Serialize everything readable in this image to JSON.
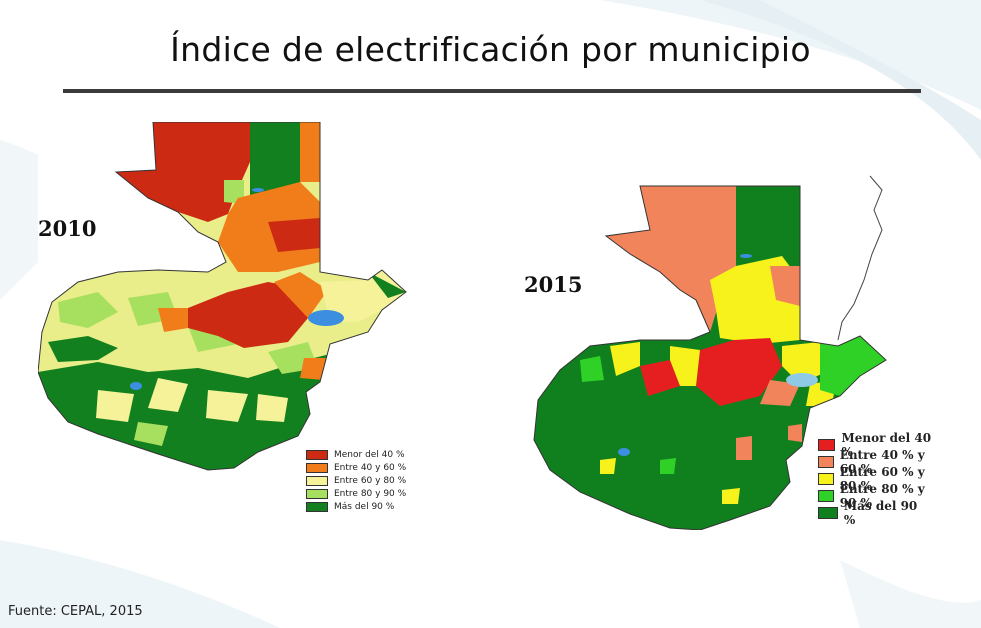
{
  "slide": {
    "title": "Índice de electrificación por municipio",
    "source": "Fuente: CEPAL, 2015"
  },
  "colors": {
    "rule": "#3a3a3a",
    "water": "#3c8fe0"
  },
  "maps": [
    {
      "year": "2010",
      "legend": [
        {
          "label": "Menor del 40 %",
          "color": "#cc2a12"
        },
        {
          "label": "Entre 40 y 60 %",
          "color": "#f07d1a"
        },
        {
          "label": "Entre 60 y 80 %",
          "color": "#f5f29a"
        },
        {
          "label": "Entre 80 y 90 %",
          "color": "#a7df5e"
        },
        {
          "label": "Más del 90 %",
          "color": "#12801e"
        }
      ]
    },
    {
      "year": "2015",
      "legend": [
        {
          "label": "Menor del 40 %",
          "color": "#e51f1f"
        },
        {
          "label": "Entre 40 % y 60 %",
          "color": "#f2845c"
        },
        {
          "label": "Entre 60 % y 80 %",
          "color": "#f7f21c"
        },
        {
          "label": "Entre 80 % y 90 %",
          "color": "#2fd127"
        },
        {
          "label": "Más del 90 %",
          "color": "#10801f"
        }
      ]
    }
  ]
}
